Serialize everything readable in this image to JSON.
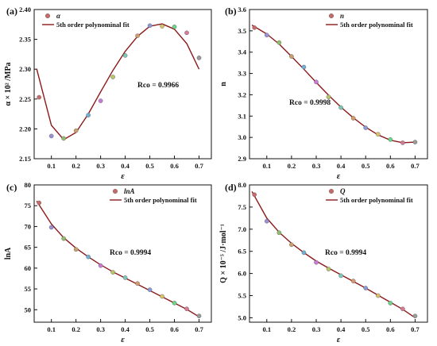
{
  "colors": {
    "fit": "#8b1a1a",
    "axis": "#111111",
    "points": [
      "#c86a6a",
      "#9b8fd6",
      "#8fbf6b",
      "#c9a06a",
      "#6fb0d6",
      "#c97ad6",
      "#b7c46a",
      "#7ac9b8",
      "#d69a6a",
      "#8a9ad6",
      "#d6c26a",
      "#6ad68a",
      "#d67a9a",
      "#9a9a9a"
    ]
  },
  "chart_data": [
    {
      "type": "scatter",
      "panel_label": "(a)",
      "xlabel": "ε",
      "ylabel": "α × 10² /MPa",
      "xlim": [
        0.03,
        0.75
      ],
      "ylim": [
        2.15,
        2.4
      ],
      "xticks": [
        "0.1",
        "0.2",
        "0.3",
        "0.4",
        "0.5",
        "0.6",
        "0.7"
      ],
      "yticks": [
        "2.15",
        "2.20",
        "2.25",
        "2.30",
        "2.35",
        "2.40"
      ],
      "legend": {
        "marker": "α",
        "line": "5th order polynominal fit",
        "position": "top-left"
      },
      "annotation": "Rco = 0.9966",
      "x": [
        0.05,
        0.1,
        0.15,
        0.2,
        0.25,
        0.3,
        0.35,
        0.4,
        0.45,
        0.5,
        0.55,
        0.6,
        0.65,
        0.7
      ],
      "series": [
        {
          "values": [
            2.253,
            2.188,
            2.184,
            2.197,
            2.223,
            2.247,
            2.287,
            2.323,
            2.356,
            2.373,
            2.372,
            2.371,
            2.361,
            2.319
          ]
        },
        {
          "values": [
            2.285,
            2.206,
            2.182,
            2.194,
            2.225,
            2.262,
            2.298,
            2.33,
            2.355,
            2.372,
            2.376,
            2.367,
            2.343,
            2.3
          ],
          "fit": true
        }
      ]
    },
    {
      "type": "scatter",
      "panel_label": "(b)",
      "xlabel": "ε",
      "ylabel": "n",
      "xlim": [
        0.03,
        0.75
      ],
      "ylim": [
        2.9,
        3.6
      ],
      "xticks": [
        "0.1",
        "0.2",
        "0.3",
        "0.4",
        "0.5",
        "0.6",
        "0.7"
      ],
      "yticks": [
        "2.9",
        "3.0",
        "3.1",
        "3.2",
        "3.3",
        "3.4",
        "3.5",
        "3.6"
      ],
      "legend": {
        "marker": "n",
        "line": "5th order polynominal fit",
        "position": "top-right"
      },
      "annotation": "Rco = 0.9998",
      "x": [
        0.05,
        0.1,
        0.15,
        0.2,
        0.25,
        0.3,
        0.35,
        0.4,
        0.45,
        0.5,
        0.55,
        0.6,
        0.65,
        0.7
      ],
      "series": [
        {
          "values": [
            3.515,
            3.48,
            3.445,
            3.38,
            3.33,
            3.26,
            3.19,
            3.14,
            3.09,
            3.045,
            3.015,
            2.99,
            2.975,
            2.978
          ]
        },
        {
          "values": [
            3.52,
            3.485,
            3.438,
            3.38,
            3.32,
            3.258,
            3.198,
            3.142,
            3.092,
            3.048,
            3.012,
            2.987,
            2.975,
            2.978
          ],
          "fit": true
        }
      ]
    },
    {
      "type": "scatter",
      "panel_label": "(c)",
      "xlabel": "ε",
      "ylabel": "lnA",
      "xlim": [
        0.03,
        0.75
      ],
      "ylim": [
        47,
        80
      ],
      "xticks": [
        "0.1",
        "0.2",
        "0.3",
        "0.4",
        "0.5",
        "0.6",
        "0.7"
      ],
      "yticks": [
        "50",
        "55",
        "60",
        "65",
        "70",
        "75",
        "80"
      ],
      "legend": {
        "marker": "lnA",
        "line": "5th order polynominal fit",
        "position": "top-right"
      },
      "annotation": "Rco = 0.9994",
      "x": [
        0.05,
        0.1,
        0.15,
        0.2,
        0.25,
        0.3,
        0.35,
        0.4,
        0.45,
        0.5,
        0.55,
        0.6,
        0.65,
        0.7
      ],
      "series": [
        {
          "values": [
            75.7,
            69.8,
            67.1,
            64.5,
            62.7,
            60.6,
            59.0,
            57.7,
            56.3,
            54.8,
            53.2,
            51.6,
            50.2,
            48.5
          ]
        },
        {
          "values": [
            75.2,
            70.6,
            67.3,
            64.8,
            62.7,
            60.8,
            59.1,
            57.6,
            56.1,
            54.6,
            53.1,
            51.6,
            50.1,
            48.3
          ],
          "fit": true
        }
      ]
    },
    {
      "type": "scatter",
      "panel_label": "(d)",
      "xlabel": "ε",
      "ylabel": "Q × 10⁻⁵ /J·mol⁻¹",
      "xlim": [
        0.03,
        0.75
      ],
      "ylim": [
        4.9,
        8.0
      ],
      "xticks": [
        "0.1",
        "0.2",
        "0.3",
        "0.4",
        "0.5",
        "0.6",
        "0.7"
      ],
      "yticks": [
        "5.0",
        "5.5",
        "6.0",
        "6.5",
        "7.0",
        "7.5",
        "8.0"
      ],
      "legend": {
        "marker": "Q",
        "line": "5th order polynominal fit",
        "position": "top-right"
      },
      "annotation": "Rco = 0.9994",
      "x": [
        0.05,
        0.1,
        0.15,
        0.2,
        0.25,
        0.3,
        0.35,
        0.4,
        0.45,
        0.5,
        0.55,
        0.6,
        0.65,
        0.7
      ],
      "series": [
        {
          "values": [
            7.78,
            7.18,
            6.92,
            6.65,
            6.47,
            6.25,
            6.1,
            5.95,
            5.83,
            5.67,
            5.5,
            5.33,
            5.2,
            5.04
          ]
        },
        {
          "values": [
            7.75,
            7.25,
            6.93,
            6.68,
            6.47,
            6.28,
            6.12,
            5.97,
            5.82,
            5.67,
            5.51,
            5.35,
            5.19,
            5.0
          ],
          "fit": true
        }
      ]
    }
  ]
}
